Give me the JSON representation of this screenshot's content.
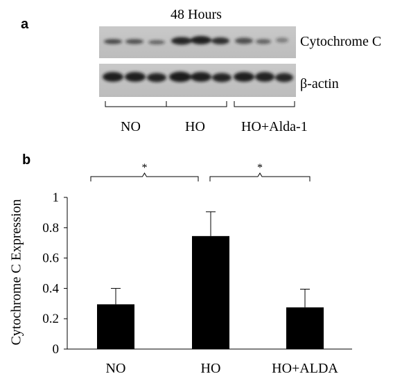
{
  "panel_a": {
    "label": "a",
    "timepoint": "48 Hours",
    "bands": [
      "Cytochrome C",
      "β-actin"
    ],
    "groups": [
      "NO",
      "HO",
      "HO+Alda-1"
    ]
  },
  "panel_b": {
    "label": "b",
    "significance": [
      "*",
      "*"
    ]
  },
  "chart_data": {
    "type": "bar",
    "categories": [
      "NO",
      "HO",
      "HO+ALDA"
    ],
    "values": [
      0.295,
      0.745,
      0.275
    ],
    "error": [
      0.105,
      0.16,
      0.12
    ],
    "ylabel": "Cytochrome C Expression",
    "xlabel": "",
    "ylim": [
      0,
      1
    ],
    "yticks": [
      "0",
      "0.2",
      "0.4",
      "0.6",
      "0.8",
      "1"
    ],
    "bar_color": "#000000",
    "grid": false,
    "significance_brackets": [
      {
        "from": "NO",
        "to": "HO",
        "label": "*"
      },
      {
        "from": "HO",
        "to": "HO+ALDA",
        "label": "*"
      }
    ]
  }
}
